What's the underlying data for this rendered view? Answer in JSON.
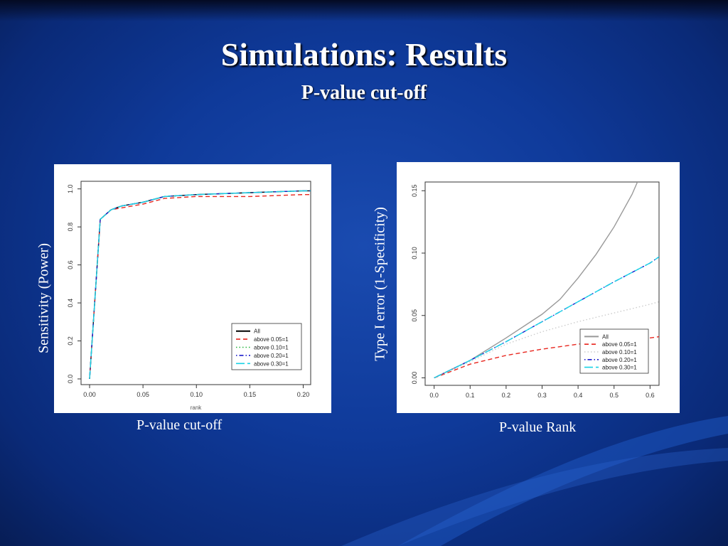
{
  "slide": {
    "title": "Simulations: Results",
    "subtitle": "P-value cut-off"
  },
  "captions": {
    "left_x": "P-value cut-off",
    "left_y": "Sensitivity (Power)",
    "right_x": "P-value Rank",
    "right_y": "Type I error (1-Specificity)"
  },
  "chart_data": [
    {
      "type": "line",
      "title": "",
      "xlabel": "rank",
      "ylabel": "",
      "xlim": [
        -0.008,
        0.207
      ],
      "ylim": [
        -0.03,
        1.04
      ],
      "xticks": [
        0.0,
        0.05,
        0.1,
        0.15,
        0.2
      ],
      "xtick_labels": [
        "0.00",
        "0.05",
        "0.10",
        "0.15",
        "0.20"
      ],
      "yticks": [
        0.0,
        0.2,
        0.4,
        0.6,
        0.8,
        1.0
      ],
      "ytick_labels": [
        "0.0",
        "0.2",
        "0.4",
        "0.6",
        "0.8",
        "1.0"
      ],
      "grid": false,
      "legend": "bottom-right",
      "series": [
        {
          "name": "All",
          "color": "#000000",
          "dash": "solid",
          "x": [
            0,
            0.01,
            0.02,
            0.03,
            0.05,
            0.07,
            0.1,
            0.15,
            0.2,
            0.21
          ],
          "y": [
            0,
            0.84,
            0.89,
            0.91,
            0.93,
            0.96,
            0.97,
            0.98,
            0.99,
            0.99
          ]
        },
        {
          "name": "above 0.05=1",
          "color": "#e8261e",
          "dash": "dashed",
          "x": [
            0,
            0.01,
            0.02,
            0.03,
            0.05,
            0.07,
            0.1,
            0.15,
            0.2,
            0.21
          ],
          "y": [
            0,
            0.84,
            0.89,
            0.9,
            0.92,
            0.95,
            0.96,
            0.96,
            0.97,
            0.97
          ]
        },
        {
          "name": "above 0.10=1",
          "color": "#22b33a",
          "dash": "dotted",
          "x": [
            0,
            0.01,
            0.02,
            0.03,
            0.05,
            0.07,
            0.1,
            0.15,
            0.2,
            0.21
          ],
          "y": [
            0,
            0.84,
            0.89,
            0.91,
            0.93,
            0.96,
            0.97,
            0.98,
            0.99,
            0.99
          ]
        },
        {
          "name": "above 0.20=1",
          "color": "#1a1acc",
          "dash": "dotdash",
          "x": [
            0,
            0.01,
            0.02,
            0.03,
            0.05,
            0.07,
            0.1,
            0.15,
            0.2,
            0.21
          ],
          "y": [
            0,
            0.84,
            0.89,
            0.91,
            0.93,
            0.96,
            0.97,
            0.98,
            0.99,
            0.99
          ]
        },
        {
          "name": "above 0.30=1",
          "color": "#19d3e6",
          "dash": "longdash",
          "x": [
            0,
            0.01,
            0.02,
            0.03,
            0.05,
            0.07,
            0.1,
            0.15,
            0.2,
            0.21
          ],
          "y": [
            0,
            0.84,
            0.89,
            0.91,
            0.93,
            0.96,
            0.97,
            0.98,
            0.99,
            0.99
          ]
        }
      ]
    },
    {
      "type": "line",
      "title": "",
      "xlabel": "",
      "ylabel": "",
      "xlim": [
        -0.025,
        0.625
      ],
      "ylim": [
        -0.006,
        0.157
      ],
      "xticks": [
        0.0,
        0.1,
        0.2,
        0.3,
        0.4,
        0.5,
        0.6
      ],
      "xtick_labels": [
        "0.0",
        "0.1",
        "0.2",
        "0.3",
        "0.4",
        "0.5",
        "0.6"
      ],
      "yticks": [
        0.0,
        0.05,
        0.1,
        0.15
      ],
      "ytick_labels": [
        "0.00",
        "0.05",
        "0.10",
        "0.15"
      ],
      "grid": false,
      "legend": "bottom-right",
      "series": [
        {
          "name": "All",
          "color": "#999999",
          "dash": "solid",
          "x": [
            0,
            0.1,
            0.2,
            0.3,
            0.35,
            0.4,
            0.45,
            0.5,
            0.55,
            0.565
          ],
          "y": [
            0,
            0.014,
            0.032,
            0.051,
            0.063,
            0.08,
            0.099,
            0.121,
            0.147,
            0.157
          ]
        },
        {
          "name": "above 0.05=1",
          "color": "#e8261e",
          "dash": "dashed",
          "x": [
            0,
            0.1,
            0.2,
            0.3,
            0.4,
            0.5,
            0.6,
            0.625
          ],
          "y": [
            0,
            0.011,
            0.018,
            0.023,
            0.027,
            0.03,
            0.032,
            0.033
          ]
        },
        {
          "name": "above 0.10=1",
          "color": "#cccccc",
          "dash": "dotted",
          "x": [
            0,
            0.1,
            0.2,
            0.3,
            0.4,
            0.5,
            0.6,
            0.625
          ],
          "y": [
            0,
            0.013,
            0.027,
            0.037,
            0.045,
            0.052,
            0.059,
            0.061
          ]
        },
        {
          "name": "above 0.20=1",
          "color": "#1a1acc",
          "dash": "dotdash",
          "x": [
            0,
            0.1,
            0.2,
            0.3,
            0.4,
            0.5,
            0.6,
            0.625
          ],
          "y": [
            0,
            0.014,
            0.029,
            0.045,
            0.061,
            0.077,
            0.092,
            0.097
          ]
        },
        {
          "name": "above 0.30=1",
          "color": "#19d3e6",
          "dash": "longdash",
          "x": [
            0,
            0.1,
            0.2,
            0.3,
            0.4,
            0.5,
            0.6,
            0.625
          ],
          "y": [
            0,
            0.014,
            0.029,
            0.045,
            0.061,
            0.077,
            0.092,
            0.097
          ]
        }
      ]
    }
  ]
}
